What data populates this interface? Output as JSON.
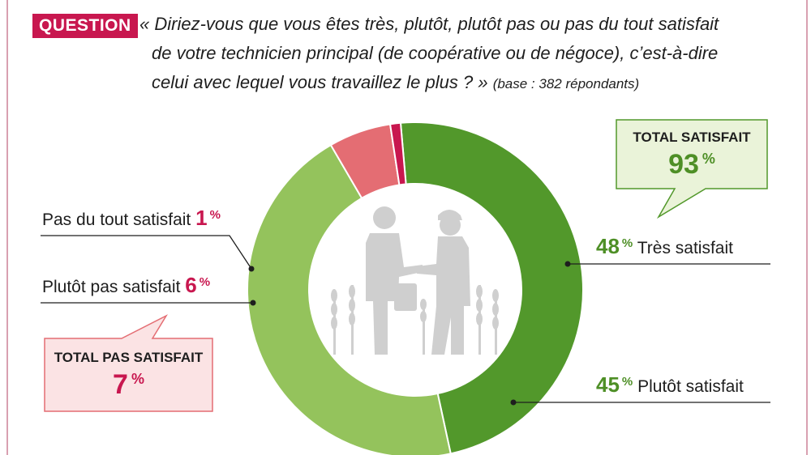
{
  "question": {
    "tag": "QUESTION",
    "line1": "« Diriez-vous que vous êtes très, plutôt, plutôt pas ou pas du tout satisfait",
    "line2": "de votre technicien principal (de coopérative ou de négoce), c’est-à-dire",
    "line3": "celui avec lequel vous travaillez le plus ? »",
    "base": "(base : 382 répondants)"
  },
  "chart_data": {
    "type": "pie",
    "style": "donut",
    "slices": [
      {
        "label": "Très satisfait",
        "value": 48,
        "color": "#52982b"
      },
      {
        "label": "Plutôt satisfait",
        "value": 45,
        "color": "#94c35c"
      },
      {
        "label": "Plutôt pas satisfait",
        "value": 6,
        "color": "#e46d73"
      },
      {
        "label": "Pas du tout satisfait",
        "value": 1,
        "color": "#c8174f"
      }
    ],
    "unit": "%",
    "totals": [
      {
        "title": "TOTAL SATISFAIT",
        "value": 93
      },
      {
        "title": "TOTAL PAS SATISFAIT",
        "value": 7
      }
    ]
  },
  "labels": {
    "tres": {
      "value": "48",
      "unit": "%",
      "text": "Très satisfait"
    },
    "plutot": {
      "value": "45",
      "unit": "%",
      "text": "Plutôt satisfait"
    },
    "plutot_pas": {
      "text": "Plutôt pas satisfait",
      "value": "6",
      "unit": "%"
    },
    "pas_du_tout": {
      "text": "Pas du tout satisfait",
      "value": "1",
      "unit": "%"
    }
  },
  "callouts": {
    "satisfait": {
      "title": "TOTAL SATISFAIT",
      "value": "93",
      "unit": "%"
    },
    "pas_satisfait": {
      "title": "TOTAL PAS SATISFAIT",
      "value": "7",
      "unit": "%"
    }
  },
  "colors": {
    "accent_pink": "#c8174f",
    "green_dark": "#52982b",
    "green_light": "#94c35c",
    "salmon": "#e46d73",
    "illustration": "#cfcfcf"
  }
}
